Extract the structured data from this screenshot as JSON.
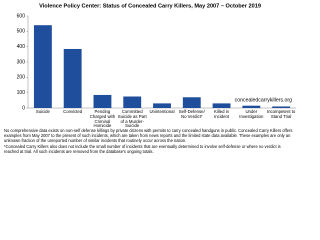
{
  "chart_data": {
    "type": "bar",
    "title": "Violence Policy Center: Status of Concealed Carry Killers, May 2007 – October 2019",
    "categories": [
      "Suicide",
      "Convicted",
      "Pending Charged with Criminal Homicide",
      "Committed Suicide as Part of a Murder-Suicide",
      "Unintentional",
      "Self-Defense/ No Verdict*",
      "Killed in Incident",
      "Under Investigation",
      "Incompetent to Stand Trial"
    ],
    "values": [
      540,
      385,
      85,
      75,
      30,
      70,
      30,
      15,
      10
    ],
    "color": "#1f4e9c",
    "ylim": [
      0,
      600
    ],
    "yticks": [
      0,
      100,
      200,
      300,
      400,
      500,
      600
    ],
    "grid": false,
    "annotations": [
      "concealedcarrykillers.org"
    ],
    "notes": [
      "No comprehensive data exists on non-self defense killings by private citizens with permits to carry concealed handguns in public. Concealed Carry Killers offers examples from May 2007 to the present of such incidents, which are taken from news reports and the limited state data available. These examples are only an unknown fraction of the unreported number of similar incidents that routinely occur across the nation.",
      "*Concealed Carry Killers also does not include the small number of incidents that are eventually determined to involve self-defense or where no verdict is reached at trial. All such incidents are removed from the database's ongoing totals."
    ]
  }
}
